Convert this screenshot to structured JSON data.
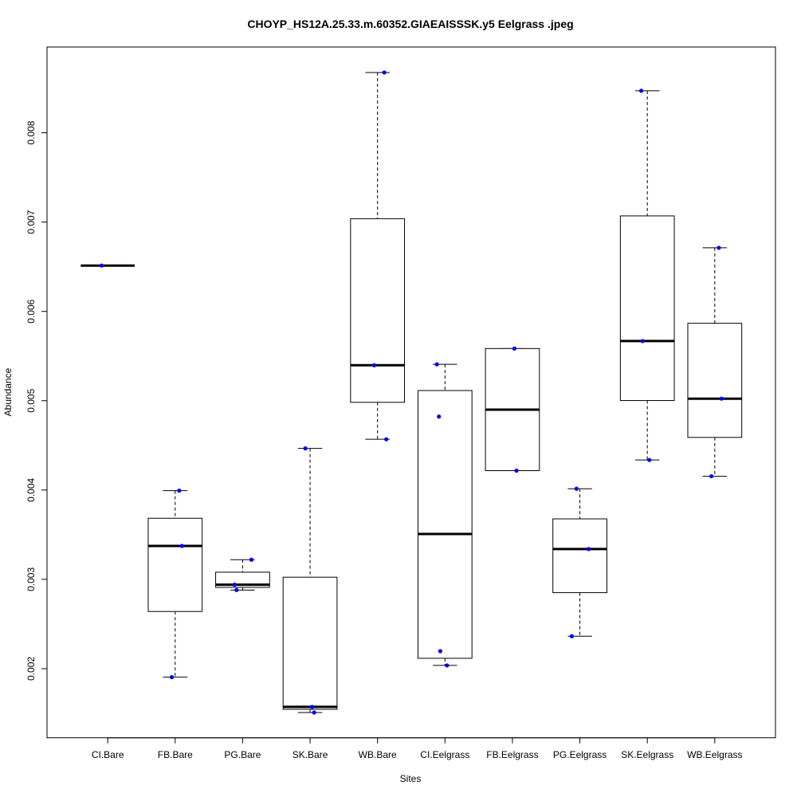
{
  "chart_data": {
    "type": "boxplot",
    "title": "CHOYP_HS12A.25.33.m.60352.GIAEAISSSK.y5 Eelgrass .jpeg",
    "xlabel": "Sites",
    "ylabel": "Abundance",
    "ylim": [
      0.001226,
      0.00896
    ],
    "yticks": [
      "0.002",
      "0.003",
      "0.004",
      "0.005",
      "0.006",
      "0.007",
      "0.008"
    ],
    "grid": false,
    "point_color": "#0000ff",
    "categories": [
      "CI.Bare",
      "FB.Bare",
      "PG.Bare",
      "SK.Bare",
      "WB.Bare",
      "CI.Eelgrass",
      "FB.Eelgrass",
      "PG.Eelgrass",
      "SK.Eelgrass",
      "WB.Eelgrass"
    ],
    "boxes": [
      {
        "name": "CI.Bare",
        "whisker_low": 0.006513,
        "q1": 0.006513,
        "median": 0.006513,
        "q3": 0.006513,
        "whisker_high": 0.006513,
        "points": [
          0.006513
        ]
      },
      {
        "name": "FB.Bare",
        "whisker_low": 0.001905,
        "q1": 0.00264,
        "median": 0.003374,
        "q3": 0.003684,
        "whisker_high": 0.003993,
        "points": [
          0.003993,
          0.003374,
          0.001905
        ]
      },
      {
        "name": "PG.Bare",
        "whisker_low": 0.00288,
        "q1": 0.00291,
        "median": 0.00294,
        "q3": 0.00308,
        "whisker_high": 0.00322,
        "points": [
          0.00322,
          0.00294,
          0.00288
        ]
      },
      {
        "name": "SK.Bare",
        "whisker_low": 0.001509,
        "q1": 0.001545,
        "median": 0.001572,
        "q3": 0.003024,
        "whisker_high": 0.004466,
        "points": [
          0.004466,
          0.001572,
          0.001509
        ]
      },
      {
        "name": "WB.Bare",
        "whisker_low": 0.004568,
        "q1": 0.004982,
        "median": 0.005397,
        "q3": 0.007038,
        "whisker_high": 0.008675,
        "points": [
          0.008675,
          0.005397,
          0.004568
        ]
      },
      {
        "name": "CI.Eelgrass",
        "whisker_low": 0.002036,
        "q1": 0.002116,
        "median": 0.003508,
        "q3": 0.005114,
        "whisker_high": 0.005407,
        "points": [
          0.005407,
          0.004822,
          0.002196,
          0.002036
        ]
      },
      {
        "name": "FB.Eelgrass",
        "whisker_low": 0.004217,
        "q1": 0.004217,
        "median": 0.0049,
        "q3": 0.005584,
        "whisker_high": 0.005584,
        "points": [
          0.005584,
          0.004217
        ]
      },
      {
        "name": "PG.Eelgrass",
        "whisker_low": 0.002363,
        "q1": 0.002851,
        "median": 0.003339,
        "q3": 0.003677,
        "whisker_high": 0.004014,
        "points": [
          0.004014,
          0.003339,
          0.002363
        ]
      },
      {
        "name": "SK.Eelgrass",
        "whisker_low": 0.004336,
        "q1": 0.005002,
        "median": 0.005668,
        "q3": 0.007069,
        "whisker_high": 0.00847,
        "points": [
          0.00847,
          0.005668,
          0.004336
        ]
      },
      {
        "name": "WB.Eelgrass",
        "whisker_low": 0.004154,
        "q1": 0.004589,
        "median": 0.005023,
        "q3": 0.005867,
        "whisker_high": 0.006712,
        "points": [
          0.006712,
          0.005023,
          0.004154
        ]
      }
    ]
  }
}
